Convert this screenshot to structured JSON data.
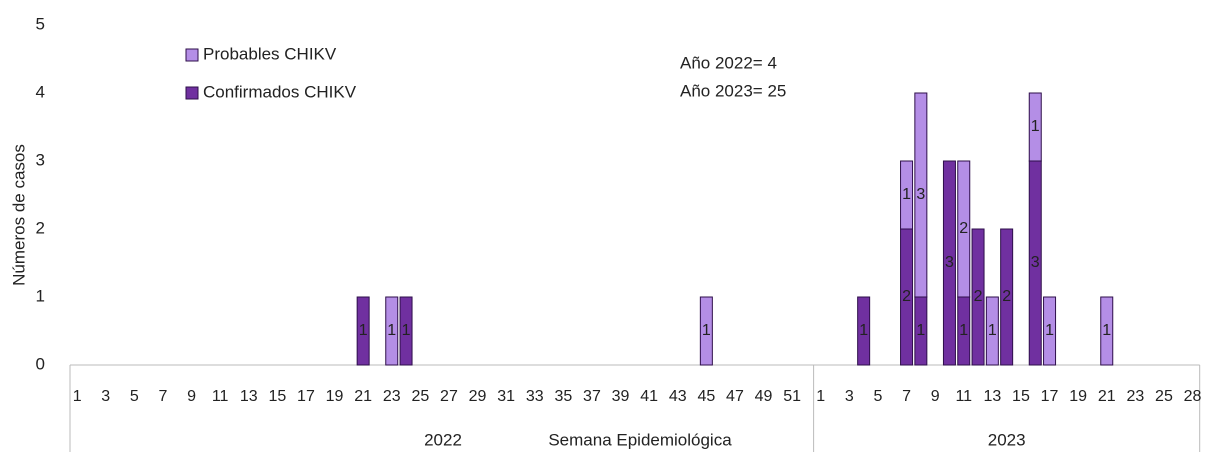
{
  "chart_data": {
    "type": "stacked_bar",
    "y_label": "Números de casos",
    "x_label": "Semana Epidemiológica",
    "annotations": [
      "Año 2022= 4",
      "Año 2023= 25"
    ],
    "x_groups": [
      {
        "label": "2022",
        "span": 52
      },
      {
        "label": "2023",
        "span": 27
      }
    ],
    "categories": [
      "1",
      null,
      "3",
      null,
      "5",
      null,
      "7",
      null,
      "9",
      null,
      "11",
      null,
      "13",
      null,
      "15",
      null,
      "17",
      null,
      "19",
      null,
      "21",
      null,
      "23",
      null,
      "25",
      null,
      "27",
      null,
      "29",
      null,
      "31",
      null,
      "33",
      null,
      "35",
      null,
      "37",
      null,
      "39",
      null,
      "41",
      null,
      "43",
      null,
      "45",
      null,
      "47",
      null,
      "49",
      null,
      "51",
      null,
      "1",
      null,
      "3",
      null,
      "5",
      null,
      "7",
      null,
      "9",
      null,
      "11",
      null,
      "13",
      null,
      "15",
      null,
      "17",
      null,
      "19",
      null,
      "21",
      null,
      "23",
      null,
      "25",
      null,
      "28"
    ],
    "series": [
      {
        "name": "Confirmados  CHIKV",
        "color": "#7030a0",
        "values": [
          0,
          0,
          0,
          0,
          0,
          0,
          0,
          0,
          0,
          0,
          0,
          0,
          0,
          0,
          0,
          0,
          0,
          0,
          0,
          0,
          1,
          0,
          0,
          1,
          0,
          0,
          0,
          0,
          0,
          0,
          0,
          0,
          0,
          0,
          0,
          0,
          0,
          0,
          0,
          0,
          0,
          0,
          0,
          0,
          0,
          0,
          0,
          0,
          0,
          0,
          0,
          0,
          0,
          0,
          0,
          1,
          0,
          0,
          2,
          1,
          0,
          3,
          1,
          2,
          0,
          2,
          0,
          3,
          0,
          0,
          0,
          0,
          0,
          0,
          0,
          0,
          0,
          0,
          0
        ]
      },
      {
        "name": "Probables CHIKV",
        "color": "#b48ee6",
        "values": [
          0,
          0,
          0,
          0,
          0,
          0,
          0,
          0,
          0,
          0,
          0,
          0,
          0,
          0,
          0,
          0,
          0,
          0,
          0,
          0,
          0,
          0,
          1,
          0,
          0,
          0,
          0,
          0,
          0,
          0,
          0,
          0,
          0,
          0,
          0,
          0,
          0,
          0,
          0,
          0,
          0,
          0,
          0,
          0,
          1,
          0,
          0,
          0,
          0,
          0,
          0,
          0,
          0,
          0,
          0,
          0,
          0,
          0,
          1,
          3,
          0,
          0,
          2,
          0,
          1,
          0,
          0,
          1,
          1,
          0,
          0,
          0,
          1,
          0,
          0,
          0,
          0,
          0,
          0
        ]
      }
    ],
    "ylim": [
      0,
      5
    ],
    "yticks": [
      0,
      1,
      2,
      3,
      4,
      5
    ],
    "grid": false
  }
}
